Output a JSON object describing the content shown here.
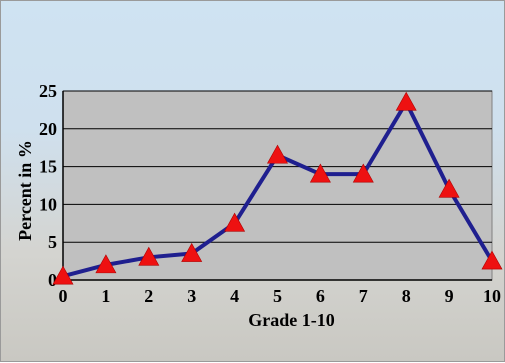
{
  "chart_data": {
    "type": "line",
    "title": "",
    "xlabel": "Grade 1-10",
    "ylabel": "Percent in %",
    "x": [
      0,
      1,
      2,
      3,
      4,
      5,
      6,
      7,
      8,
      9,
      10
    ],
    "xticks": [
      "0",
      "1",
      "2",
      "3",
      "4",
      "5",
      "6",
      "7",
      "8",
      "9",
      "10"
    ],
    "yticks": [
      "0",
      "5",
      "10",
      "15",
      "20",
      "25"
    ],
    "ylim": [
      0,
      25
    ],
    "xlim": [
      0,
      10
    ],
    "grid": true,
    "series": [
      {
        "values": [
          0.5,
          2,
          3,
          3.5,
          7.5,
          16.5,
          14,
          14,
          23.5,
          12,
          2.5
        ],
        "line_color": "#1f1f8f",
        "marker": "triangle",
        "marker_color": "#ee1111"
      }
    ],
    "colors": {
      "plot_background": "#c0c0c0",
      "gridline": "#000000"
    }
  }
}
